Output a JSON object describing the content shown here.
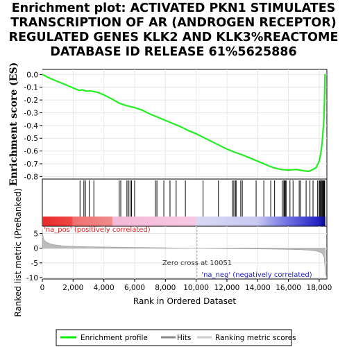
{
  "title_lines": [
    "Enrichment plot: ACTIVATED PKN1 STIMULATES",
    "TRANSCRIPTION OF AR (ANDROGEN RECEPTOR)",
    "REGULATED GENES KLK2 AND KLK3%REACTOME",
    "DATABASE ID RELEASE 61%5625886"
  ],
  "labels": {
    "es_ylabel": "Enrichment score (ES)",
    "metric_ylabel": "Ranked list metric (PreRanked)",
    "xlabel": "Rank in Ordered Dataset",
    "na_pos": "'na_pos' (positively correlated)",
    "na_neg": "'na_neg' (negatively correlated)",
    "zero_cross": "Zero cross at 10051"
  },
  "legend": {
    "items": [
      {
        "label": "Enrichment profile",
        "color": "#00ee00"
      },
      {
        "label": "Hits",
        "color": "#888888"
      },
      {
        "label": "Ranking metric scores",
        "color": "#cccccc"
      }
    ]
  },
  "colors": {
    "profile": "#22ee22",
    "pos_label": "#dd2222",
    "neg_label": "#2222cc"
  },
  "chart_data": {
    "type": "line",
    "xlim": [
      0,
      18500
    ],
    "x_ticks": [
      0,
      2000,
      4000,
      6000,
      8000,
      10000,
      12000,
      14000,
      16000,
      18000
    ],
    "x_tick_labels": [
      "0",
      "2,000",
      "4,000",
      "6,000",
      "8,000",
      "10,000",
      "12,000",
      "14,000",
      "16,000",
      "18,000"
    ],
    "es_ylim": [
      -0.82,
      0.04
    ],
    "es_ticks": [
      0.0,
      -0.1,
      -0.2,
      -0.3,
      -0.4,
      -0.5,
      -0.6,
      -0.7,
      -0.8
    ],
    "es_tick_labels": [
      "0.0",
      "-0.1",
      "-0.2",
      "-0.3",
      "-0.4",
      "-0.5",
      "-0.6",
      "-0.7",
      "-0.8"
    ],
    "metric_ylim": [
      -10.5,
      7.5
    ],
    "metric_ticks": [
      5,
      0,
      -5,
      -10
    ],
    "metric_tick_labels": [
      "5",
      "0",
      "-5",
      "-10"
    ],
    "zero_cross": 10051,
    "profile": {
      "name": "Enrichment profile",
      "x": [
        0,
        500,
        1000,
        1500,
        2000,
        2400,
        2600,
        2800,
        3200,
        3600,
        4000,
        4500,
        5000,
        5500,
        6000,
        6500,
        7000,
        7500,
        8000,
        8500,
        9000,
        9500,
        10000,
        10500,
        11000,
        11500,
        12000,
        12500,
        13000,
        13500,
        14000,
        14500,
        15000,
        15500,
        16000,
        16500,
        17000,
        17300,
        17600,
        17800,
        17900,
        18000,
        18100,
        18150,
        18200,
        18250,
        18300,
        18320,
        18340,
        18360,
        18380
      ],
      "y": [
        0.0,
        -0.03,
        -0.055,
        -0.08,
        -0.105,
        -0.125,
        -0.12,
        -0.13,
        -0.13,
        -0.14,
        -0.16,
        -0.19,
        -0.225,
        -0.245,
        -0.26,
        -0.28,
        -0.31,
        -0.335,
        -0.36,
        -0.385,
        -0.41,
        -0.44,
        -0.465,
        -0.495,
        -0.525,
        -0.555,
        -0.585,
        -0.61,
        -0.63,
        -0.655,
        -0.68,
        -0.705,
        -0.73,
        -0.745,
        -0.75,
        -0.745,
        -0.755,
        -0.76,
        -0.745,
        -0.73,
        -0.705,
        -0.68,
        -0.62,
        -0.58,
        -0.52,
        -0.44,
        -0.36,
        -0.3,
        -0.2,
        -0.1,
        0.005
      ]
    },
    "hits": [
      2450,
      2700,
      2800,
      3050,
      3350,
      5000,
      5100,
      5500,
      5600,
      5700,
      5800,
      6000,
      7350,
      7450,
      7900,
      8300,
      8700,
      9300,
      10450,
      11450,
      12350,
      12450,
      12550,
      12600,
      12900,
      13000,
      13900,
      14400,
      14850,
      15100,
      15600,
      15700,
      15750,
      15800,
      15850,
      16100,
      16300,
      16700,
      16800,
      17150,
      17400,
      17600,
      17900,
      18000,
      18050,
      18100,
      18150,
      18200,
      18250,
      18300,
      18320,
      18340,
      18360
    ],
    "metric": {
      "name": "Ranking metric scores",
      "x": [
        0,
        20,
        60,
        150,
        300,
        500,
        800,
        1200,
        1600,
        2000,
        3000,
        4000,
        5000,
        6000,
        7000,
        8000,
        9000,
        10051,
        11000,
        12000,
        13000,
        14000,
        15000,
        16000,
        16800,
        17300,
        17700,
        18000,
        18200,
        18320,
        18360,
        18390
      ],
      "y": [
        6.5,
        5.0,
        3.6,
        2.6,
        2.0,
        1.5,
        1.15,
        0.9,
        0.75,
        0.65,
        0.5,
        0.42,
        0.35,
        0.28,
        0.2,
        0.13,
        0.06,
        0.0,
        -0.06,
        -0.12,
        -0.18,
        -0.24,
        -0.3,
        -0.38,
        -0.5,
        -0.65,
        -0.85,
        -1.2,
        -1.8,
        -3.0,
        -5.5,
        -9.5
      ]
    },
    "color_bar": {
      "stops": [
        {
          "x": 0,
          "color": "#e82a2a"
        },
        {
          "x": 1900,
          "color": "#f04646"
        },
        {
          "x": 2000,
          "color": "#f07070"
        },
        {
          "x": 4500,
          "color": "#f08a8a"
        },
        {
          "x": 4600,
          "color": "#f4b8d8"
        },
        {
          "x": 9900,
          "color": "#f6c8e4"
        },
        {
          "x": 10100,
          "color": "#d8d8f4"
        },
        {
          "x": 14000,
          "color": "#c8c8f2"
        },
        {
          "x": 15000,
          "color": "#9898ea"
        },
        {
          "x": 16000,
          "color": "#6e6ee0"
        },
        {
          "x": 17200,
          "color": "#4040d0"
        },
        {
          "x": 18000,
          "color": "#2020c0"
        },
        {
          "x": 18400,
          "color": "#080880"
        }
      ]
    }
  }
}
